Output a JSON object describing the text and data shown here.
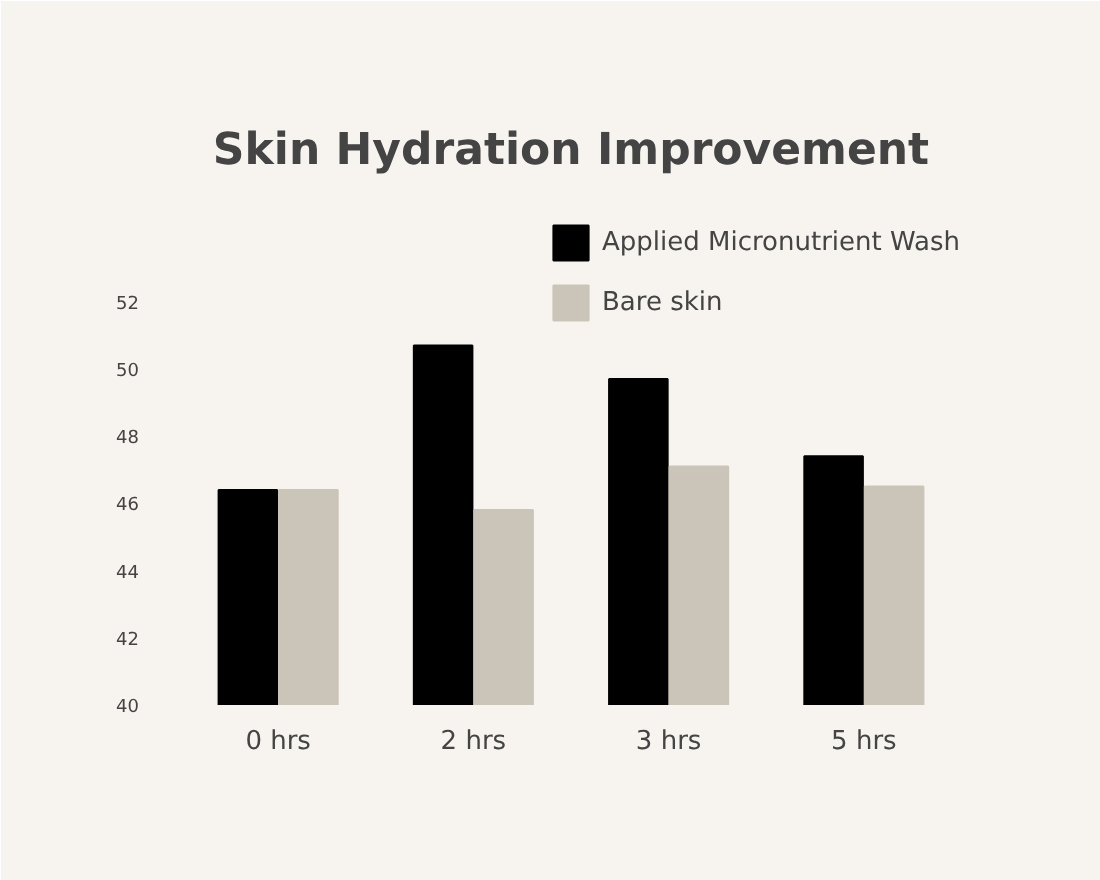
{
  "chart_data": {
    "type": "bar",
    "title": "Skin Hydration Improvement",
    "categories": [
      "0 hrs",
      "2 hrs",
      "3 hrs",
      "5 hrs"
    ],
    "series": [
      {
        "name": "Applied Micronutrient Wash",
        "color": "#000000",
        "values": [
          46.4,
          50.7,
          49.7,
          47.4
        ]
      },
      {
        "name": "Bare skin",
        "color": "#cbc5b9",
        "values": [
          46.4,
          45.8,
          47.1,
          46.5
        ]
      }
    ],
    "ylim": [
      40,
      55
    ],
    "yticks": [
      40,
      42,
      44,
      46,
      48,
      50,
      52
    ],
    "grid": false,
    "legend": "top right"
  }
}
